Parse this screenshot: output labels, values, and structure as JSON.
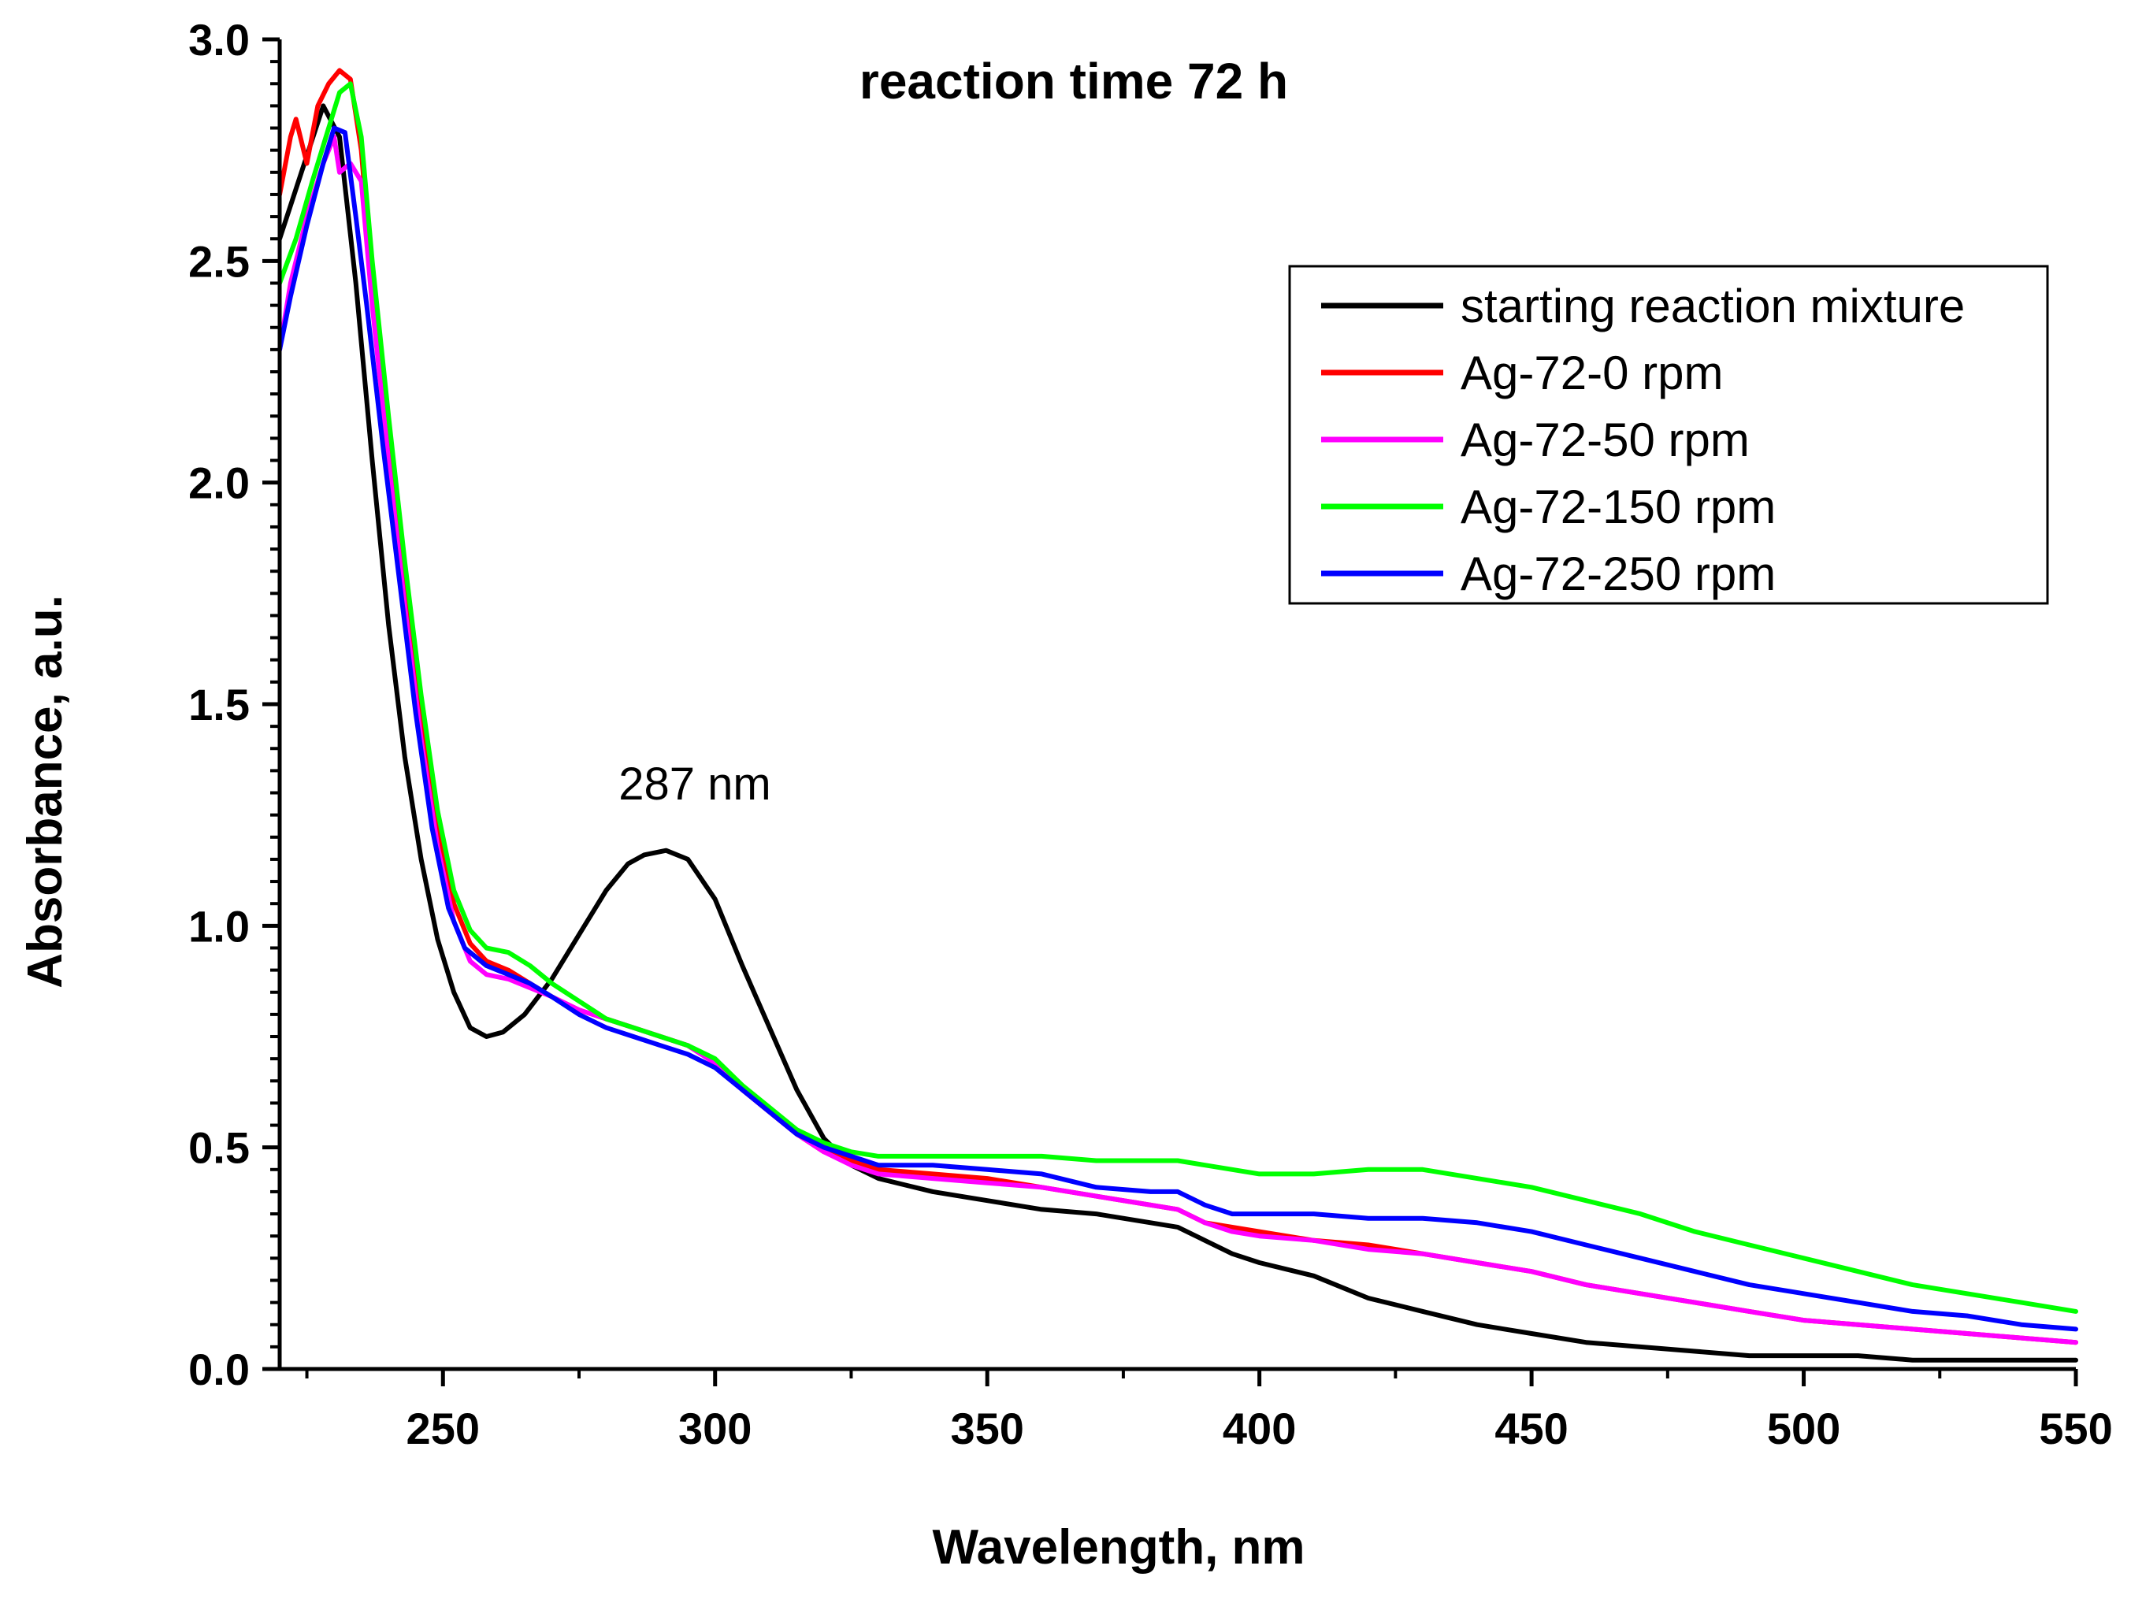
{
  "chart_data": {
    "type": "line",
    "title": "reaction time 72 h",
    "xlabel": "Wavelength, nm",
    "ylabel": "Absorbance, a.u.",
    "xlim": [
      220,
      550
    ],
    "ylim": [
      0,
      3.0
    ],
    "xticks": [
      250,
      300,
      350,
      400,
      450,
      500,
      550
    ],
    "xtick_labels": [
      "250",
      "300",
      "350",
      "400",
      "450",
      "500",
      "550"
    ],
    "yticks": [
      0.0,
      0.5,
      1.0,
      1.5,
      2.0,
      2.5,
      3.0
    ],
    "ytick_labels": [
      "0.0",
      "0.5",
      "1.0",
      "1.5",
      "2.0",
      "2.5",
      "3.0"
    ],
    "annotations": [
      {
        "text": "287 nm",
        "x": 287,
        "y": 1.27
      }
    ],
    "legend_position": "top-right",
    "series": [
      {
        "name": "starting reaction mixture",
        "color": "#000000",
        "points": [
          [
            220,
            2.55
          ],
          [
            224,
            2.7
          ],
          [
            228,
            2.85
          ],
          [
            231,
            2.78
          ],
          [
            234,
            2.45
          ],
          [
            237,
            2.05
          ],
          [
            240,
            1.68
          ],
          [
            243,
            1.38
          ],
          [
            246,
            1.15
          ],
          [
            249,
            0.97
          ],
          [
            252,
            0.85
          ],
          [
            255,
            0.77
          ],
          [
            258,
            0.75
          ],
          [
            261,
            0.76
          ],
          [
            265,
            0.8
          ],
          [
            270,
            0.88
          ],
          [
            275,
            0.98
          ],
          [
            280,
            1.08
          ],
          [
            284,
            1.14
          ],
          [
            287,
            1.16
          ],
          [
            291,
            1.17
          ],
          [
            295,
            1.15
          ],
          [
            300,
            1.06
          ],
          [
            305,
            0.91
          ],
          [
            310,
            0.77
          ],
          [
            315,
            0.63
          ],
          [
            320,
            0.52
          ],
          [
            325,
            0.46
          ],
          [
            330,
            0.43
          ],
          [
            340,
            0.4
          ],
          [
            350,
            0.38
          ],
          [
            360,
            0.36
          ],
          [
            370,
            0.35
          ],
          [
            380,
            0.33
          ],
          [
            385,
            0.32
          ],
          [
            390,
            0.29
          ],
          [
            395,
            0.26
          ],
          [
            400,
            0.24
          ],
          [
            410,
            0.21
          ],
          [
            420,
            0.16
          ],
          [
            430,
            0.13
          ],
          [
            440,
            0.1
          ],
          [
            450,
            0.08
          ],
          [
            460,
            0.06
          ],
          [
            470,
            0.05
          ],
          [
            480,
            0.04
          ],
          [
            490,
            0.03
          ],
          [
            500,
            0.03
          ],
          [
            510,
            0.03
          ],
          [
            520,
            0.02
          ],
          [
            530,
            0.02
          ],
          [
            540,
            0.02
          ],
          [
            550,
            0.02
          ]
        ]
      },
      {
        "name": "Ag-72-0 rpm",
        "color": "#ff0000",
        "points": [
          [
            220,
            2.65
          ],
          [
            222,
            2.78
          ],
          [
            223,
            2.82
          ],
          [
            225,
            2.72
          ],
          [
            227,
            2.85
          ],
          [
            229,
            2.9
          ],
          [
            231,
            2.93
          ],
          [
            233,
            2.91
          ],
          [
            235,
            2.75
          ],
          [
            237,
            2.45
          ],
          [
            240,
            2.1
          ],
          [
            243,
            1.78
          ],
          [
            246,
            1.48
          ],
          [
            249,
            1.22
          ],
          [
            252,
            1.05
          ],
          [
            255,
            0.96
          ],
          [
            258,
            0.92
          ],
          [
            262,
            0.9
          ],
          [
            266,
            0.87
          ],
          [
            270,
            0.84
          ],
          [
            275,
            0.81
          ],
          [
            280,
            0.79
          ],
          [
            285,
            0.77
          ],
          [
            290,
            0.75
          ],
          [
            295,
            0.73
          ],
          [
            300,
            0.69
          ],
          [
            305,
            0.63
          ],
          [
            310,
            0.58
          ],
          [
            315,
            0.53
          ],
          [
            320,
            0.49
          ],
          [
            325,
            0.47
          ],
          [
            330,
            0.45
          ],
          [
            340,
            0.44
          ],
          [
            350,
            0.43
          ],
          [
            360,
            0.41
          ],
          [
            370,
            0.39
          ],
          [
            380,
            0.37
          ],
          [
            385,
            0.36
          ],
          [
            390,
            0.33
          ],
          [
            395,
            0.32
          ],
          [
            400,
            0.31
          ],
          [
            410,
            0.29
          ],
          [
            420,
            0.28
          ],
          [
            430,
            0.26
          ],
          [
            440,
            0.24
          ],
          [
            450,
            0.22
          ],
          [
            460,
            0.19
          ],
          [
            470,
            0.17
          ],
          [
            480,
            0.15
          ],
          [
            490,
            0.13
          ],
          [
            500,
            0.11
          ],
          [
            510,
            0.1
          ],
          [
            520,
            0.09
          ],
          [
            530,
            0.08
          ],
          [
            540,
            0.07
          ],
          [
            550,
            0.06
          ]
        ]
      },
      {
        "name": "Ag-72-50 rpm",
        "color": "#ff00ff",
        "points": [
          [
            220,
            2.3
          ],
          [
            222,
            2.45
          ],
          [
            225,
            2.6
          ],
          [
            228,
            2.72
          ],
          [
            230,
            2.78
          ],
          [
            231,
            2.7
          ],
          [
            233,
            2.72
          ],
          [
            235,
            2.68
          ],
          [
            237,
            2.4
          ],
          [
            240,
            2.05
          ],
          [
            243,
            1.72
          ],
          [
            246,
            1.42
          ],
          [
            249,
            1.18
          ],
          [
            252,
            1.01
          ],
          [
            255,
            0.92
          ],
          [
            258,
            0.89
          ],
          [
            262,
            0.88
          ],
          [
            266,
            0.86
          ],
          [
            270,
            0.84
          ],
          [
            275,
            0.81
          ],
          [
            280,
            0.79
          ],
          [
            285,
            0.77
          ],
          [
            290,
            0.75
          ],
          [
            295,
            0.73
          ],
          [
            300,
            0.69
          ],
          [
            305,
            0.63
          ],
          [
            310,
            0.58
          ],
          [
            315,
            0.53
          ],
          [
            320,
            0.49
          ],
          [
            325,
            0.46
          ],
          [
            330,
            0.44
          ],
          [
            340,
            0.43
          ],
          [
            350,
            0.42
          ],
          [
            360,
            0.41
          ],
          [
            370,
            0.39
          ],
          [
            380,
            0.37
          ],
          [
            385,
            0.36
          ],
          [
            390,
            0.33
          ],
          [
            395,
            0.31
          ],
          [
            400,
            0.3
          ],
          [
            410,
            0.29
          ],
          [
            420,
            0.27
          ],
          [
            430,
            0.26
          ],
          [
            440,
            0.24
          ],
          [
            450,
            0.22
          ],
          [
            460,
            0.19
          ],
          [
            470,
            0.17
          ],
          [
            480,
            0.15
          ],
          [
            490,
            0.13
          ],
          [
            500,
            0.11
          ],
          [
            510,
            0.1
          ],
          [
            520,
            0.09
          ],
          [
            530,
            0.08
          ],
          [
            540,
            0.07
          ],
          [
            550,
            0.06
          ]
        ]
      },
      {
        "name": "Ag-72-150 rpm",
        "color": "#00ff00",
        "points": [
          [
            220,
            2.45
          ],
          [
            223,
            2.55
          ],
          [
            226,
            2.68
          ],
          [
            229,
            2.8
          ],
          [
            231,
            2.88
          ],
          [
            233,
            2.9
          ],
          [
            235,
            2.78
          ],
          [
            237,
            2.5
          ],
          [
            240,
            2.15
          ],
          [
            243,
            1.82
          ],
          [
            246,
            1.52
          ],
          [
            249,
            1.26
          ],
          [
            252,
            1.08
          ],
          [
            255,
            0.99
          ],
          [
            258,
            0.95
          ],
          [
            262,
            0.94
          ],
          [
            266,
            0.91
          ],
          [
            270,
            0.87
          ],
          [
            275,
            0.83
          ],
          [
            280,
            0.79
          ],
          [
            285,
            0.77
          ],
          [
            290,
            0.75
          ],
          [
            295,
            0.73
          ],
          [
            300,
            0.7
          ],
          [
            305,
            0.64
          ],
          [
            310,
            0.59
          ],
          [
            315,
            0.54
          ],
          [
            320,
            0.51
          ],
          [
            325,
            0.49
          ],
          [
            330,
            0.48
          ],
          [
            340,
            0.48
          ],
          [
            350,
            0.48
          ],
          [
            360,
            0.48
          ],
          [
            370,
            0.47
          ],
          [
            380,
            0.47
          ],
          [
            385,
            0.47
          ],
          [
            390,
            0.46
          ],
          [
            395,
            0.45
          ],
          [
            400,
            0.44
          ],
          [
            410,
            0.44
          ],
          [
            420,
            0.45
          ],
          [
            430,
            0.45
          ],
          [
            440,
            0.43
          ],
          [
            450,
            0.41
          ],
          [
            460,
            0.38
          ],
          [
            470,
            0.35
          ],
          [
            480,
            0.31
          ],
          [
            490,
            0.28
          ],
          [
            500,
            0.25
          ],
          [
            510,
            0.22
          ],
          [
            520,
            0.19
          ],
          [
            530,
            0.17
          ],
          [
            540,
            0.15
          ],
          [
            550,
            0.13
          ]
        ]
      },
      {
        "name": "Ag-72-250 rpm",
        "color": "#0000ff",
        "points": [
          [
            220,
            2.3
          ],
          [
            222,
            2.42
          ],
          [
            225,
            2.58
          ],
          [
            228,
            2.72
          ],
          [
            230,
            2.8
          ],
          [
            232,
            2.79
          ],
          [
            234,
            2.6
          ],
          [
            236,
            2.4
          ],
          [
            239,
            2.08
          ],
          [
            242,
            1.78
          ],
          [
            245,
            1.48
          ],
          [
            248,
            1.22
          ],
          [
            251,
            1.04
          ],
          [
            254,
            0.95
          ],
          [
            258,
            0.91
          ],
          [
            262,
            0.89
          ],
          [
            266,
            0.87
          ],
          [
            270,
            0.84
          ],
          [
            275,
            0.8
          ],
          [
            280,
            0.77
          ],
          [
            285,
            0.75
          ],
          [
            290,
            0.73
          ],
          [
            295,
            0.71
          ],
          [
            300,
            0.68
          ],
          [
            305,
            0.63
          ],
          [
            310,
            0.58
          ],
          [
            315,
            0.53
          ],
          [
            320,
            0.5
          ],
          [
            325,
            0.48
          ],
          [
            330,
            0.46
          ],
          [
            340,
            0.46
          ],
          [
            350,
            0.45
          ],
          [
            360,
            0.44
          ],
          [
            370,
            0.41
          ],
          [
            380,
            0.4
          ],
          [
            385,
            0.4
          ],
          [
            390,
            0.37
          ],
          [
            395,
            0.35
          ],
          [
            400,
            0.35
          ],
          [
            410,
            0.35
          ],
          [
            420,
            0.34
          ],
          [
            430,
            0.34
          ],
          [
            440,
            0.33
          ],
          [
            450,
            0.31
          ],
          [
            460,
            0.28
          ],
          [
            470,
            0.25
          ],
          [
            480,
            0.22
          ],
          [
            490,
            0.19
          ],
          [
            500,
            0.17
          ],
          [
            510,
            0.15
          ],
          [
            520,
            0.13
          ],
          [
            530,
            0.12
          ],
          [
            540,
            0.1
          ],
          [
            550,
            0.09
          ]
        ]
      }
    ]
  }
}
